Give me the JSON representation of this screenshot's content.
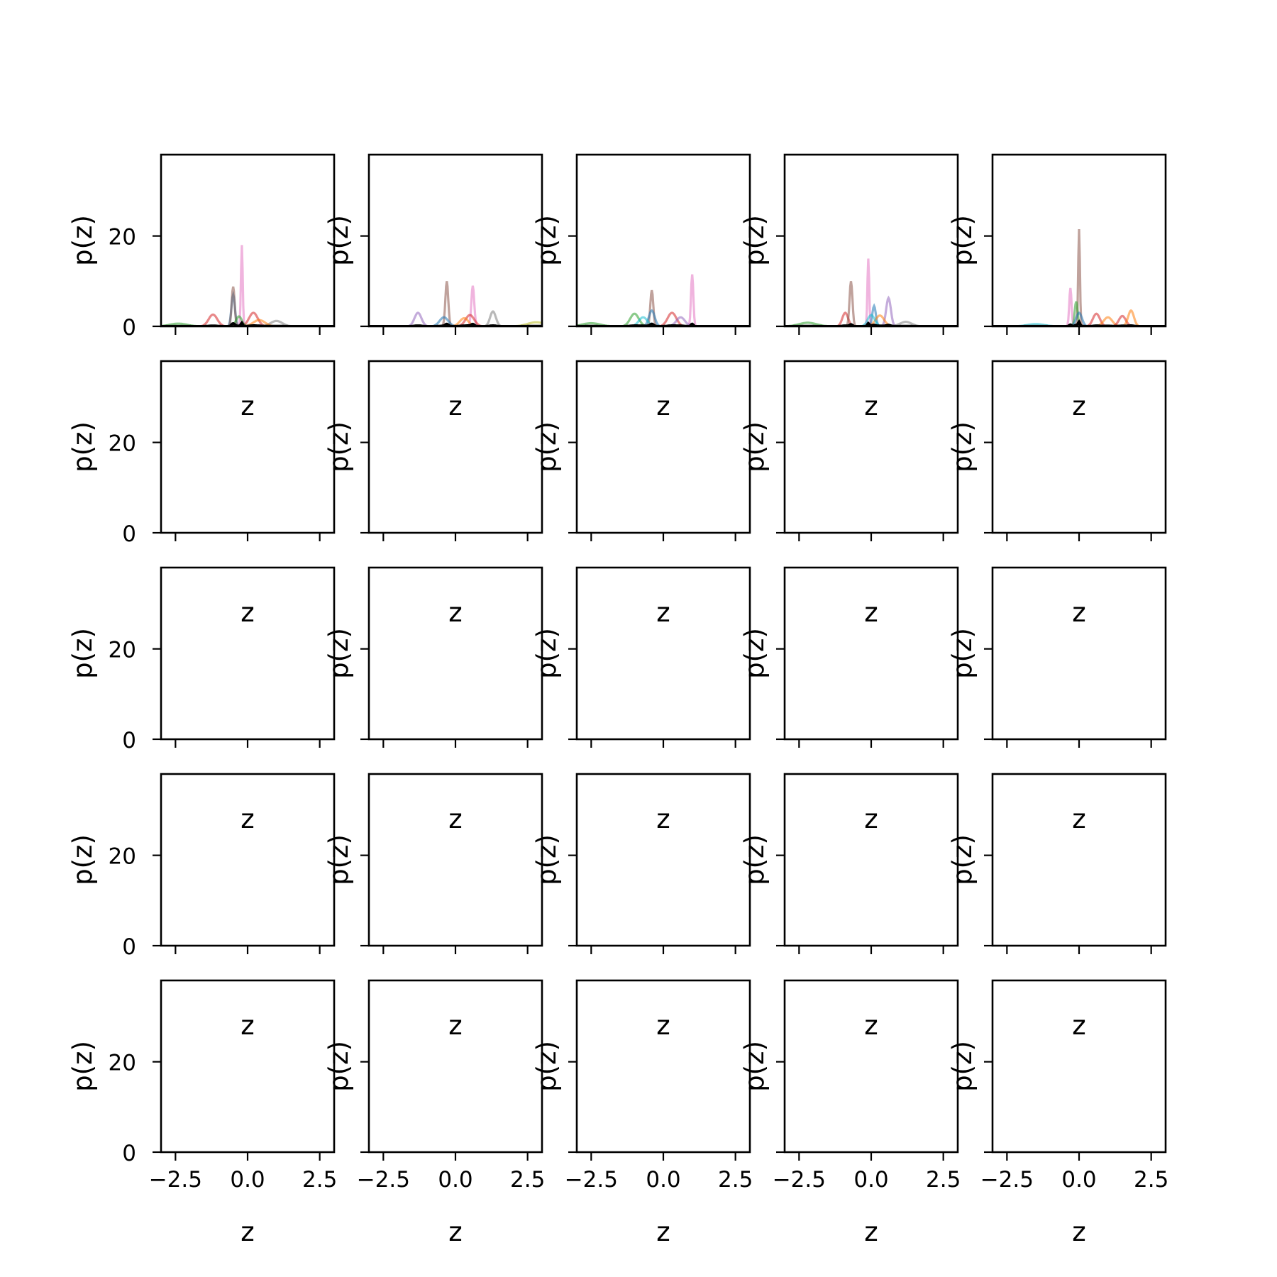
{
  "chart_data": {
    "type": "line",
    "layout": {
      "rows": 5,
      "cols": 5
    },
    "xlabel": "z",
    "ylabel": "p(z)",
    "xlim": [
      -3.0,
      3.0
    ],
    "ylim": [
      0,
      38
    ],
    "xticks": [
      -2.5,
      0.0,
      2.5
    ],
    "xtick_labels": [
      "−2.5",
      "0.0",
      "2.5"
    ],
    "yticks": [
      0,
      20
    ],
    "ytick_labels": [
      "0",
      "20"
    ],
    "series_colors": [
      "#1f77b4",
      "#ff7f0e",
      "#2ca02c",
      "#d62728",
      "#9467bd",
      "#8c564b",
      "#e377c2",
      "#7f7f7f",
      "#bcbd22",
      "#17becf"
    ],
    "panels": [
      {
        "peaks": [
          [
            -0.5,
            7.0,
            0.06,
            0
          ],
          [
            -1.2,
            2.6,
            0.15,
            3
          ],
          [
            -0.5,
            8.8,
            0.05,
            5
          ],
          [
            -0.2,
            18,
            0.03,
            6
          ],
          [
            0.2,
            3.0,
            0.15,
            3
          ],
          [
            -0.3,
            2.2,
            0.1,
            2
          ],
          [
            1.0,
            1.2,
            0.2,
            7
          ],
          [
            -2.4,
            0.6,
            0.3,
            2
          ],
          [
            0.4,
            1.4,
            0.2,
            1
          ]
        ]
      },
      {
        "peaks": [
          [
            -1.3,
            3.0,
            0.12,
            4
          ],
          [
            -0.3,
            10.0,
            0.05,
            5
          ],
          [
            0.6,
            9.0,
            0.05,
            6
          ],
          [
            1.3,
            3.3,
            0.1,
            7
          ],
          [
            0.5,
            2.5,
            0.15,
            3
          ],
          [
            -0.4,
            2.0,
            0.15,
            0
          ],
          [
            2.8,
            0.9,
            0.3,
            8
          ],
          [
            0.3,
            1.8,
            0.15,
            1
          ]
        ]
      },
      {
        "peaks": [
          [
            -2.5,
            0.7,
            0.3,
            2
          ],
          [
            -1.0,
            2.8,
            0.15,
            2
          ],
          [
            -0.4,
            8.0,
            0.05,
            5
          ],
          [
            -0.4,
            3.5,
            0.1,
            0
          ],
          [
            0.3,
            3.0,
            0.15,
            3
          ],
          [
            1.0,
            11.5,
            0.04,
            6
          ],
          [
            0.6,
            2.0,
            0.15,
            4
          ],
          [
            -0.7,
            2.0,
            0.15,
            9
          ]
        ]
      },
      {
        "peaks": [
          [
            -2.2,
            0.8,
            0.3,
            2
          ],
          [
            -0.9,
            3.0,
            0.1,
            3
          ],
          [
            -0.7,
            10.0,
            0.05,
            5
          ],
          [
            -0.1,
            15.0,
            0.03,
            6
          ],
          [
            0.1,
            4.5,
            0.06,
            0
          ],
          [
            0.6,
            6.3,
            0.08,
            4
          ],
          [
            0.3,
            2.4,
            0.15,
            1
          ],
          [
            1.2,
            1.0,
            0.2,
            7
          ],
          [
            0.0,
            2.5,
            0.12,
            9
          ]
        ]
      },
      {
        "peaks": [
          [
            0.0,
            21.5,
            0.03,
            5
          ],
          [
            -0.3,
            8.5,
            0.04,
            6
          ],
          [
            -0.1,
            5.5,
            0.05,
            2
          ],
          [
            0.0,
            3.0,
            0.1,
            0
          ],
          [
            0.6,
            2.8,
            0.12,
            3
          ],
          [
            1.0,
            2.0,
            0.15,
            1
          ],
          [
            1.5,
            2.3,
            0.12,
            3
          ],
          [
            1.8,
            3.5,
            0.1,
            1
          ],
          [
            -1.5,
            0.5,
            0.3,
            9
          ]
        ]
      }
    ]
  }
}
